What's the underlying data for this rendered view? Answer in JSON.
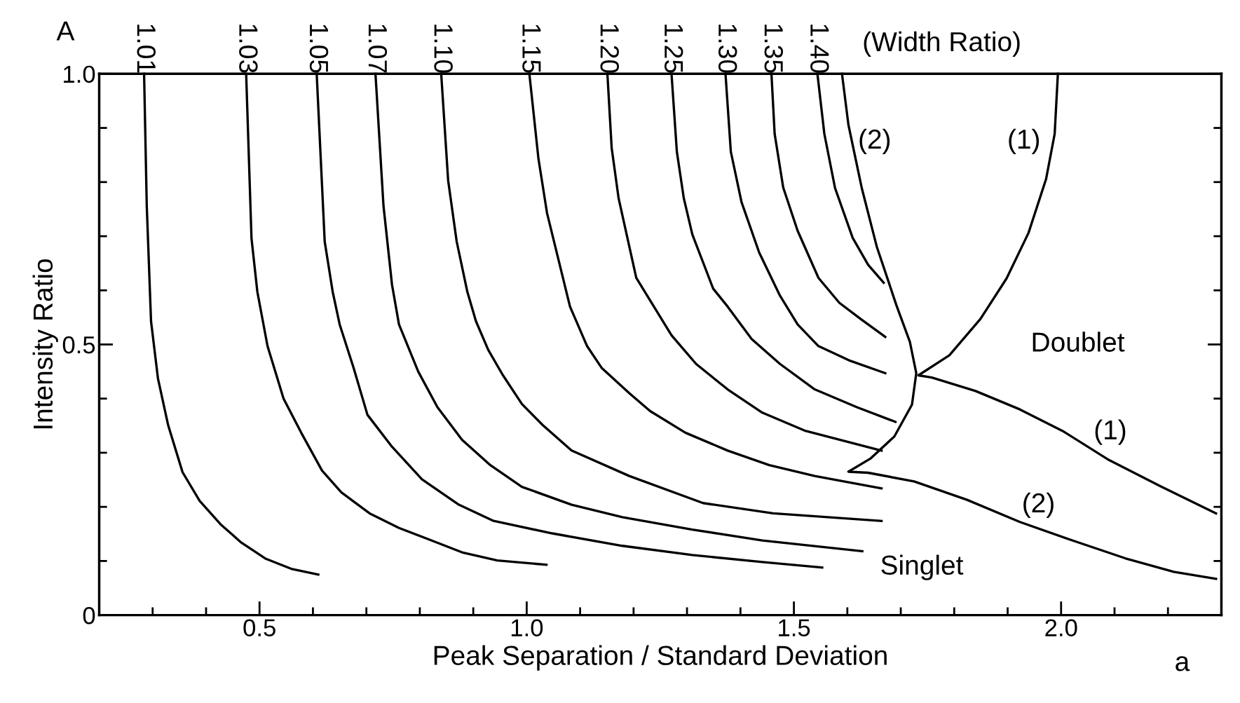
{
  "chart_data": {
    "type": "line",
    "xlabel": "Peak Separation / Standard Deviation",
    "ylabel": "Intensity Ratio",
    "xlim": [
      0.2,
      2.3
    ],
    "ylim": [
      0,
      1.0
    ],
    "xticks": [
      {
        "value": 0.3,
        "label": null
      },
      {
        "value": 0.4,
        "label": null
      },
      0.5,
      {
        "value": 0.6,
        "label": null
      },
      {
        "value": 0.7,
        "label": null
      },
      {
        "value": 0.8,
        "label": null
      },
      {
        "value": 0.9,
        "label": null
      },
      {
        "value": 1.0,
        "label": "1.0"
      },
      {
        "value": 1.1,
        "label": null
      },
      {
        "value": 1.2,
        "label": null
      },
      {
        "value": 1.3,
        "label": null
      },
      {
        "value": 1.4,
        "label": null
      },
      1.5,
      {
        "value": 1.6,
        "label": null
      },
      {
        "value": 1.7,
        "label": null
      },
      {
        "value": 1.8,
        "label": null
      },
      {
        "value": 1.9,
        "label": null
      },
      {
        "value": 2.0,
        "label": "2.0"
      },
      {
        "value": 2.1,
        "label": null
      },
      {
        "value": 2.2,
        "label": null
      }
    ],
    "yticks": [
      0,
      {
        "value": 0.1,
        "label": null
      },
      {
        "value": 0.2,
        "label": null
      },
      {
        "value": 0.3,
        "label": null
      },
      {
        "value": 0.4,
        "label": null
      },
      0.5,
      {
        "value": 0.6,
        "label": null
      },
      {
        "value": 0.7,
        "label": null
      },
      {
        "value": 0.8,
        "label": null
      },
      {
        "value": 0.9,
        "label": null
      },
      {
        "value": 1.0,
        "label": "1.0"
      }
    ],
    "grid": false,
    "legend": false,
    "marker": "none",
    "line_style": "solid",
    "series": [
      {
        "name": "1.01",
        "color": "#000000",
        "x": [
          0.284,
          0.289,
          0.297,
          0.31,
          0.329,
          0.356,
          0.388,
          0.427,
          0.466,
          0.512,
          0.561,
          0.61
        ],
        "values": [
          1.0,
          0.756,
          0.543,
          0.437,
          0.351,
          0.264,
          0.211,
          0.168,
          0.134,
          0.104,
          0.085,
          0.075
        ]
      },
      {
        "name": "1.03",
        "color": "#000000",
        "x": [
          0.475,
          0.485,
          0.496,
          0.515,
          0.545,
          0.578,
          0.617,
          0.653,
          0.706,
          0.761,
          0.814,
          0.879,
          0.945,
          1.037
        ],
        "values": [
          1.0,
          0.696,
          0.597,
          0.497,
          0.4,
          0.337,
          0.267,
          0.227,
          0.188,
          0.161,
          0.141,
          0.116,
          0.101,
          0.093
        ]
      },
      {
        "name": "1.05",
        "color": "#000000",
        "x": [
          0.607,
          0.622,
          0.637,
          0.65,
          0.676,
          0.702,
          0.748,
          0.804,
          0.873,
          0.938,
          1.048,
          1.179,
          1.31,
          1.441,
          1.553
        ],
        "values": [
          1.0,
          0.69,
          0.597,
          0.537,
          0.457,
          0.37,
          0.311,
          0.251,
          0.204,
          0.174,
          0.151,
          0.128,
          0.111,
          0.098,
          0.088
        ]
      },
      {
        "name": "1.07",
        "color": "#000000",
        "x": [
          0.717,
          0.732,
          0.748,
          0.761,
          0.797,
          0.833,
          0.879,
          0.932,
          0.991,
          1.084,
          1.179,
          1.31,
          1.441,
          1.628
        ],
        "values": [
          1.0,
          0.756,
          0.61,
          0.537,
          0.45,
          0.384,
          0.324,
          0.277,
          0.237,
          0.204,
          0.181,
          0.158,
          0.138,
          0.118
        ]
      },
      {
        "name": "1.10",
        "color": "#000000",
        "x": [
          0.84,
          0.853,
          0.869,
          0.889,
          0.905,
          0.928,
          0.955,
          0.991,
          1.03,
          1.084,
          1.192,
          1.33,
          1.461,
          1.664
        ],
        "values": [
          1.0,
          0.803,
          0.69,
          0.597,
          0.543,
          0.49,
          0.444,
          0.39,
          0.351,
          0.304,
          0.257,
          0.207,
          0.188,
          0.174
        ]
      },
      {
        "name": "1.15",
        "color": "#000000",
        "x": [
          1.005,
          1.022,
          1.038,
          1.081,
          1.113,
          1.14,
          1.192,
          1.231,
          1.297,
          1.376,
          1.454,
          1.539,
          1.664
        ],
        "values": [
          1.0,
          0.843,
          0.743,
          0.57,
          0.497,
          0.457,
          0.41,
          0.377,
          0.337,
          0.304,
          0.277,
          0.257,
          0.234
        ]
      },
      {
        "name": "1.20",
        "color": "#000000",
        "x": [
          1.151,
          1.159,
          1.172,
          1.205,
          1.271,
          1.317,
          1.376,
          1.441,
          1.52,
          1.664
        ],
        "values": [
          1.0,
          0.863,
          0.77,
          0.623,
          0.517,
          0.464,
          0.417,
          0.374,
          0.341,
          0.304
        ]
      },
      {
        "name": "1.25",
        "color": "#000000",
        "x": [
          1.271,
          1.281,
          1.294,
          1.31,
          1.349,
          1.376,
          1.421,
          1.474,
          1.539,
          1.618,
          1.69
        ],
        "values": [
          1.0,
          0.856,
          0.77,
          0.703,
          0.603,
          0.57,
          0.51,
          0.464,
          0.417,
          0.384,
          0.357
        ]
      },
      {
        "name": "1.30",
        "color": "#000000",
        "x": [
          1.372,
          1.382,
          1.402,
          1.435,
          1.474,
          1.507,
          1.546,
          1.605,
          1.671
        ],
        "values": [
          1.0,
          0.856,
          0.763,
          0.67,
          0.59,
          0.537,
          0.497,
          0.47,
          0.447
        ]
      },
      {
        "name": "1.35",
        "color": "#000000",
        "x": [
          1.458,
          1.464,
          1.48,
          1.507,
          1.546,
          1.585,
          1.625,
          1.671
        ],
        "values": [
          1.0,
          0.889,
          0.79,
          0.71,
          0.623,
          0.577,
          0.547,
          0.514
        ]
      },
      {
        "name": "1.40",
        "color": "#000000",
        "x": [
          1.544,
          1.557,
          1.577,
          1.61,
          1.639,
          1.668
        ],
        "values": [
          1.0,
          0.889,
          0.789,
          0.697,
          0.647,
          0.614
        ]
      },
      {
        "color": "#000000",
        "x": [
          1.59,
          1.602,
          1.627,
          1.655,
          1.692,
          1.717,
          1.729,
          1.721,
          1.688,
          1.643,
          1.602,
          1.639,
          1.725,
          1.824,
          1.923,
          2.021,
          2.12,
          2.211,
          2.29
        ],
        "values": [
          1.0,
          0.906,
          0.789,
          0.681,
          0.572,
          0.505,
          0.447,
          0.389,
          0.33,
          0.289,
          0.265,
          0.263,
          0.247,
          0.213,
          0.172,
          0.138,
          0.105,
          0.08,
          0.067
        ]
      },
      {
        "color": "#000000",
        "x": [
          1.994,
          1.988,
          1.972,
          1.939,
          1.898,
          1.849,
          1.791,
          1.733,
          1.758,
          1.84,
          1.923,
          2.005,
          2.087,
          2.186,
          2.29
        ],
        "values": [
          1.0,
          0.889,
          0.806,
          0.706,
          0.622,
          0.547,
          0.48,
          0.443,
          0.439,
          0.414,
          0.38,
          0.339,
          0.288,
          0.238,
          0.188
        ]
      }
    ],
    "annotations": [
      "(Width Ratio)",
      "A",
      "a",
      "(2)",
      "(1)",
      "Doublet",
      "(1)",
      "(2)",
      "Singlet"
    ]
  }
}
